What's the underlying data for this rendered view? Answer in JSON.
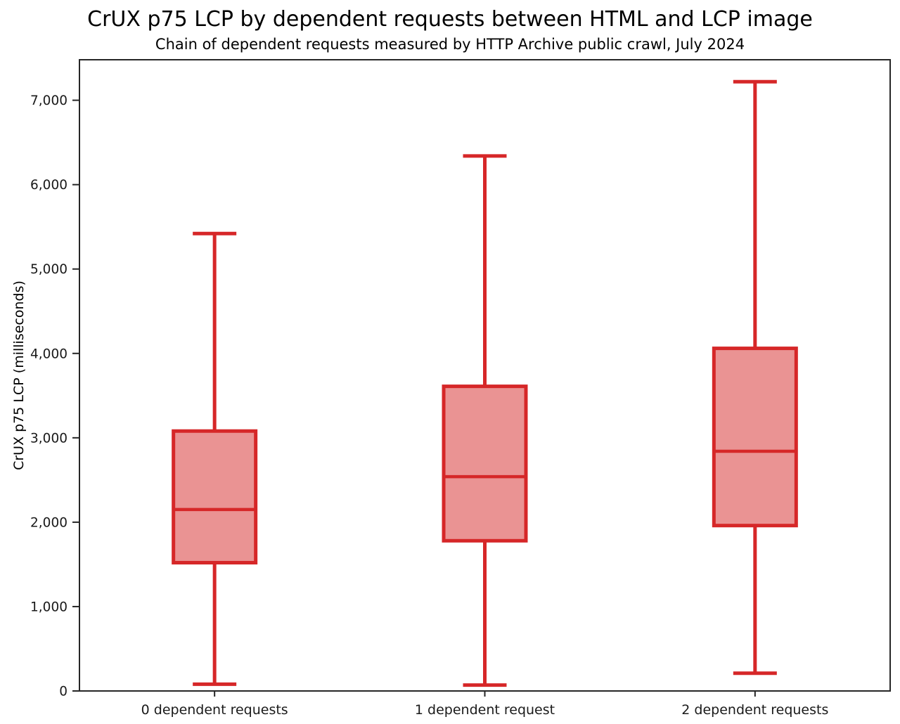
{
  "title": "CrUX p75 LCP by dependent requests between HTML and LCP image",
  "subtitle": "Chain of dependent requests measured by HTTP Archive public crawl, July 2024",
  "chart_data": {
    "type": "boxplot",
    "title": "CrUX p75 LCP by dependent requests between HTML and LCP image",
    "subtitle": "Chain of dependent requests measured by HTTP Archive public crawl, July 2024",
    "xlabel": "",
    "ylabel": "CrUX p75 LCP (milliseconds)",
    "ylim": [
      0,
      7480
    ],
    "yticks": [
      0,
      1000,
      2000,
      3000,
      4000,
      5000,
      6000,
      7000
    ],
    "ytick_labels": [
      "0",
      "1,000",
      "2,000",
      "3,000",
      "4,000",
      "5,000",
      "6,000",
      "7,000"
    ],
    "categories": [
      "0 dependent requests",
      "1 dependent request",
      "2 dependent requests"
    ],
    "series": [
      {
        "label": "0 dependent requests",
        "whisker_low": 80,
        "q1": 1520,
        "median": 2150,
        "q3": 3080,
        "whisker_high": 5420
      },
      {
        "label": "1 dependent request",
        "whisker_low": 70,
        "q1": 1780,
        "median": 2540,
        "q3": 3610,
        "whisker_high": 6340
      },
      {
        "label": "2 dependent requests",
        "whisker_low": 210,
        "q1": 1960,
        "median": 2840,
        "q3": 4060,
        "whisker_high": 7220
      }
    ],
    "grid": false,
    "legend": "none",
    "colors": {
      "box_edge": "#d62728",
      "box_fill": "#ea9393",
      "median": "#d62728",
      "whisker": "#d62728",
      "axis": "#262626",
      "tick_text": "#1a1a1a"
    }
  }
}
